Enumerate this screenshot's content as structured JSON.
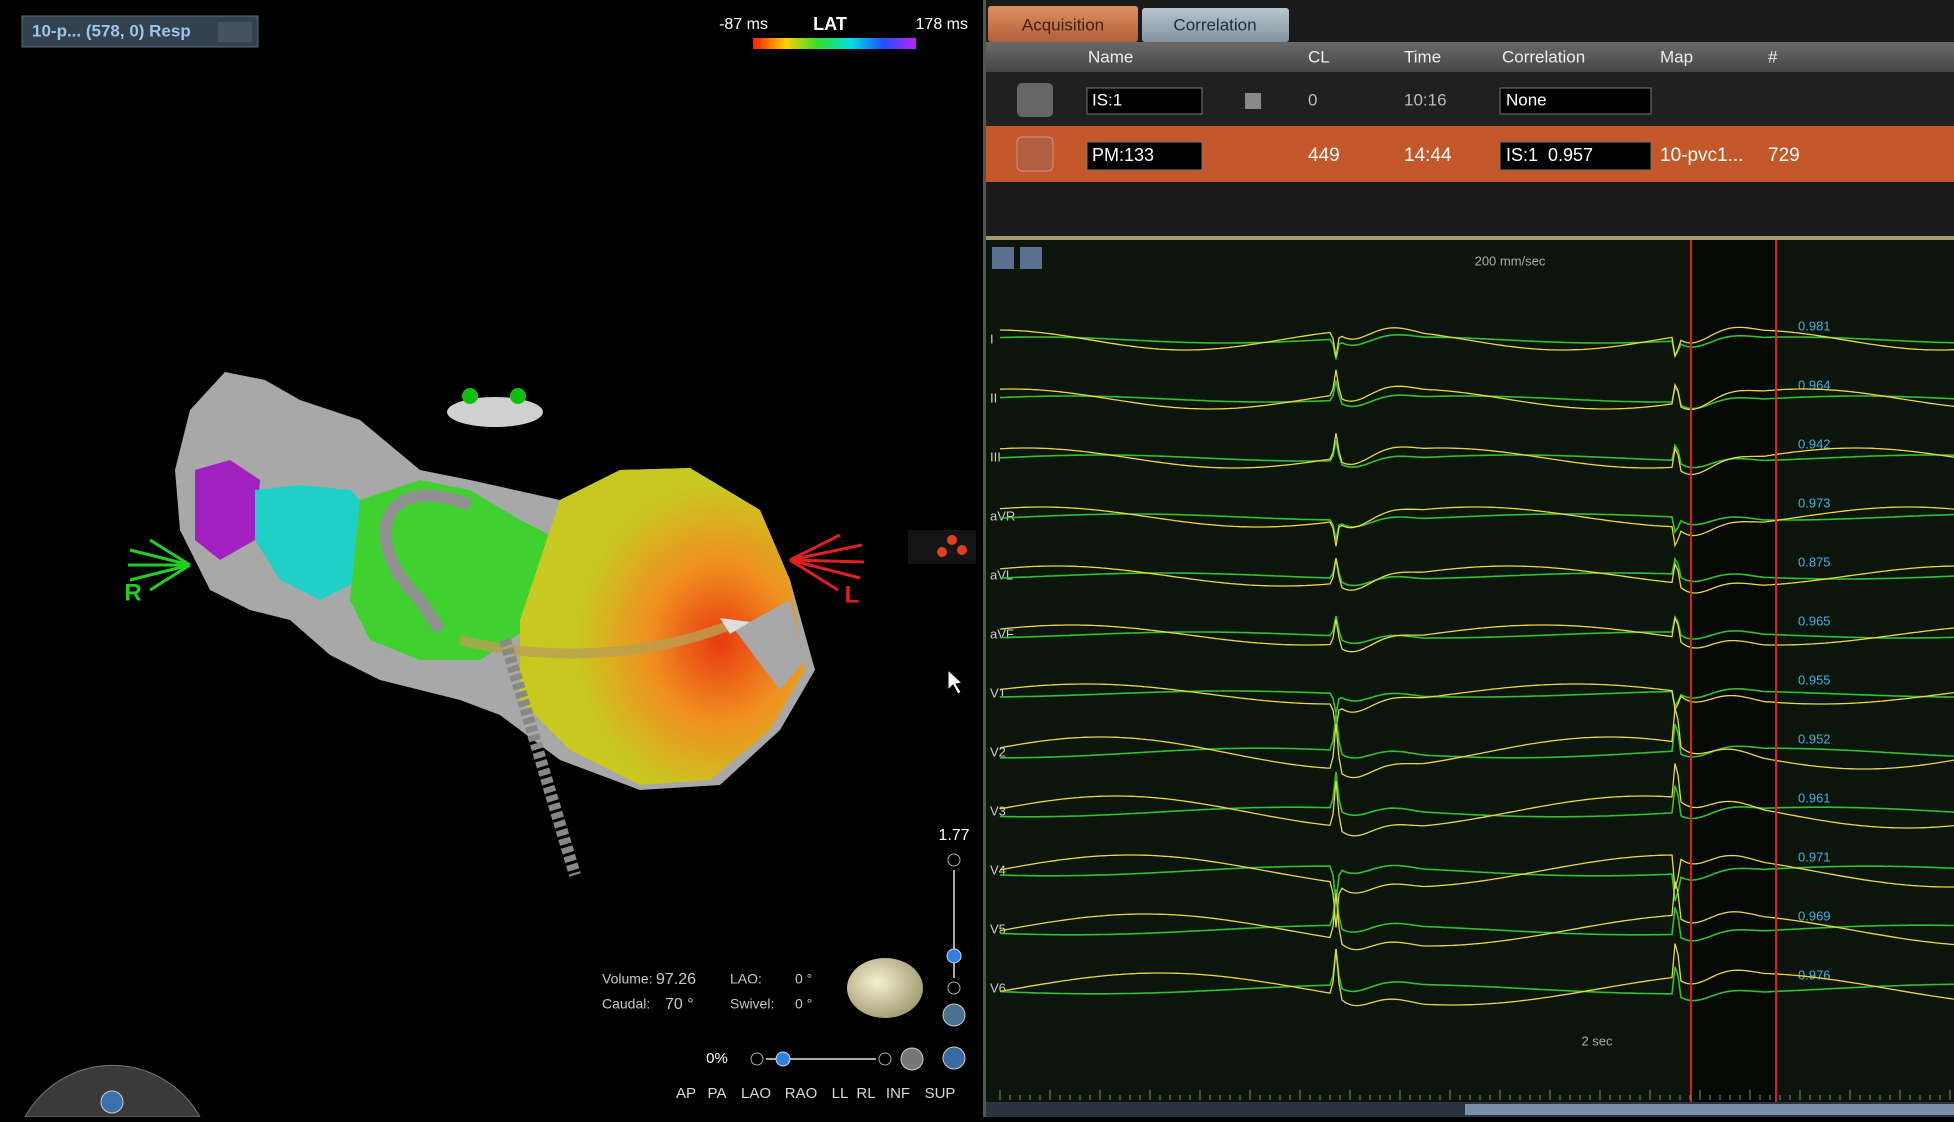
{
  "map_view": {
    "selector": "10-p... (578, 0) Resp",
    "lat": {
      "min": "-87 ms",
      "title": "LAT",
      "max": "178 ms"
    },
    "orientation": {
      "right": "R",
      "left": "L"
    },
    "zoom": "1.77",
    "info": {
      "volume_label": "Volume:",
      "volume": "97.26",
      "lao_label": "LAO:",
      "lao": "0 °",
      "caudal_label": "Caudal:",
      "caudal": "70 °",
      "swivel_label": "Swivel:",
      "swivel": "0 °"
    },
    "opacity": "0%",
    "views": [
      "AP",
      "PA",
      "LAO",
      "RAO",
      "LL",
      "RL",
      "INF",
      "SUP"
    ]
  },
  "tabs": [
    "Acquisition",
    "Correlation"
  ],
  "table": {
    "columns": [
      "Name",
      "CL",
      "Time",
      "Correlation",
      "Map",
      "#"
    ],
    "rows": [
      {
        "name": "IS:1",
        "cl": "0",
        "time": "10:16",
        "correlation": "None"
      },
      {
        "name": "PM:133",
        "cl": "449",
        "time": "14:44",
        "correlation": "IS:1  0.957",
        "map": "10-pvc1...",
        "count": "729"
      }
    ]
  },
  "ecg": {
    "speed": "200 mm/sec",
    "scale": "2 sec",
    "leads": [
      {
        "name": "I",
        "correlation": "0.981"
      },
      {
        "name": "II",
        "correlation": "0.964"
      },
      {
        "name": "III",
        "correlation": "0.942"
      },
      {
        "name": "aVR",
        "correlation": "0.973"
      },
      {
        "name": "aVL",
        "correlation": "0.875"
      },
      {
        "name": "aVF",
        "correlation": "0.965"
      },
      {
        "name": "V1",
        "correlation": "0.955"
      },
      {
        "name": "V2",
        "correlation": "0.952"
      },
      {
        "name": "V3",
        "correlation": "0.961"
      },
      {
        "name": "V4",
        "correlation": "0.971"
      },
      {
        "name": "V5",
        "correlation": "0.969"
      },
      {
        "name": "V6",
        "correlation": "0.976"
      }
    ]
  }
}
